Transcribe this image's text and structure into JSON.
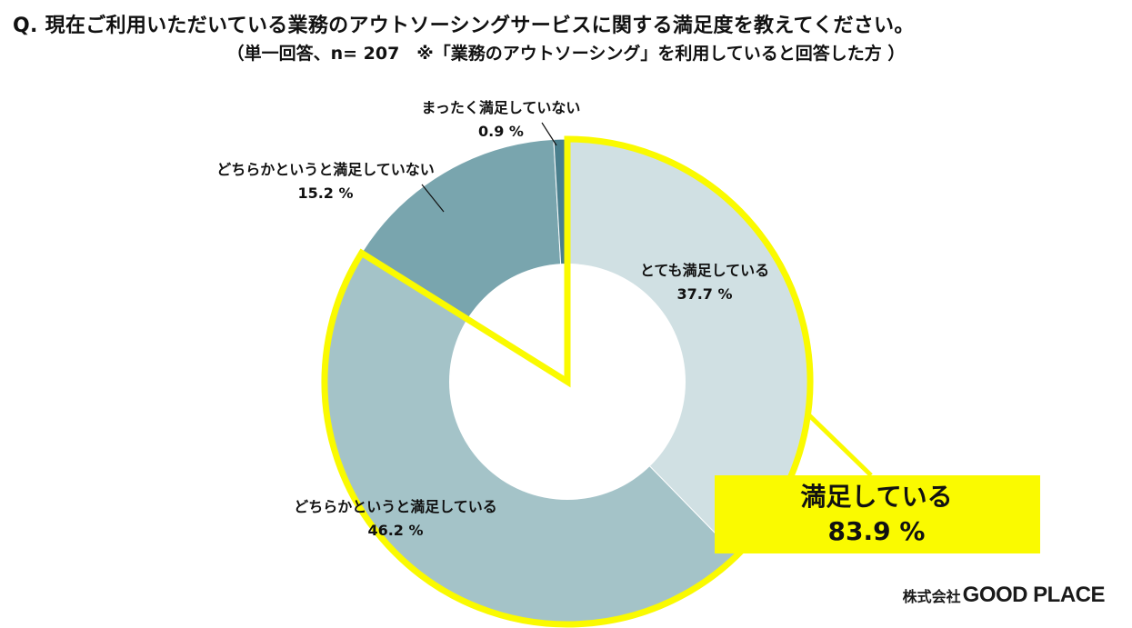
{
  "header": {
    "title": "Q. 現在ご利用いただいている業務のアウトソーシングサービスに関する満足度を教えてください。",
    "subtitle": "（単一回答、n= 207　※「業務のアウトソーシング」を利用していると回答した方 ）"
  },
  "chart_data": {
    "type": "pie",
    "variant": "donut",
    "start_angle_deg": 0,
    "direction": "clockwise",
    "slices": [
      {
        "label": "とても満足している",
        "value": 37.7,
        "value_text": "37.7 %",
        "color": "#d0e0e3",
        "highlight": true
      },
      {
        "label": "どちらかというと満足している",
        "value": 46.2,
        "value_text": "46.2 %",
        "color": "#a4c3c8",
        "highlight": true
      },
      {
        "label": "どちらかというと満足していない",
        "value": 15.2,
        "value_text": "15.2 %",
        "color": "#79a5ae",
        "highlight": false
      },
      {
        "label": "まったく満足していない",
        "value": 0.9,
        "value_text": "0.9 %",
        "color": "#4a7f8d",
        "highlight": false
      }
    ],
    "highlight_color": "#fafa00",
    "callout": {
      "label": "満足している",
      "value_text": "83.9 %",
      "value": 83.9
    }
  },
  "footer": {
    "company_prefix": "株式会社",
    "company_name": "GOOD PLACE"
  }
}
